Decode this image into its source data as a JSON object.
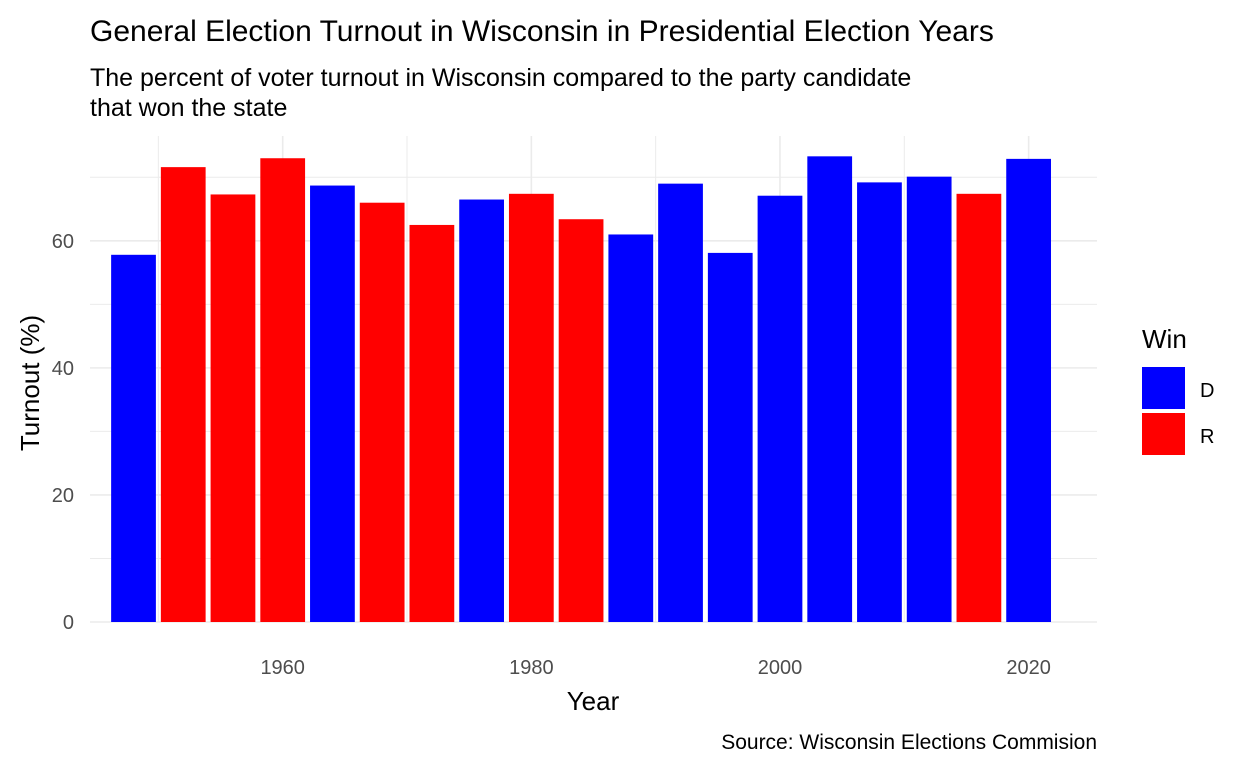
{
  "chart_data": {
    "type": "bar",
    "title": "General Election Turnout in Wisconsin in Presidential Election Years",
    "subtitle": [
      "The percent of voter turnout in Wisconsin compared to the party candidate",
      "that won the state"
    ],
    "xlabel": "Year",
    "ylabel": "Turnout (%)",
    "caption": "Source: Wisconsin Elections Commision",
    "x": [
      1948,
      1952,
      1956,
      1960,
      1964,
      1968,
      1972,
      1976,
      1980,
      1984,
      1988,
      1992,
      1996,
      2000,
      2004,
      2008,
      2012,
      2016,
      2020
    ],
    "values": [
      57.8,
      71.6,
      67.3,
      73.0,
      68.7,
      66.0,
      62.5,
      66.5,
      67.4,
      63.4,
      61.0,
      69.0,
      58.1,
      67.1,
      73.3,
      69.2,
      70.1,
      67.4,
      72.9
    ],
    "winner": [
      "D",
      "R",
      "R",
      "R",
      "D",
      "R",
      "R",
      "D",
      "R",
      "R",
      "D",
      "D",
      "D",
      "D",
      "D",
      "D",
      "D",
      "R",
      "D"
    ],
    "xticks": [
      1960,
      1980,
      2000,
      2020
    ],
    "yticks": [
      0,
      20,
      40,
      60
    ],
    "xlim": [
      1944.5,
      2025.5
    ],
    "ylim": [
      0,
      76.5
    ],
    "grid": true,
    "legend": {
      "title": "Win",
      "position": "right",
      "entries": [
        {
          "key": "D",
          "label": "D",
          "color": "#0000ff"
        },
        {
          "key": "R",
          "label": "R",
          "color": "#ff0000"
        }
      ]
    },
    "colors": {
      "D": "#0000ff",
      "R": "#ff0000",
      "grid": "#ebebeb"
    }
  }
}
